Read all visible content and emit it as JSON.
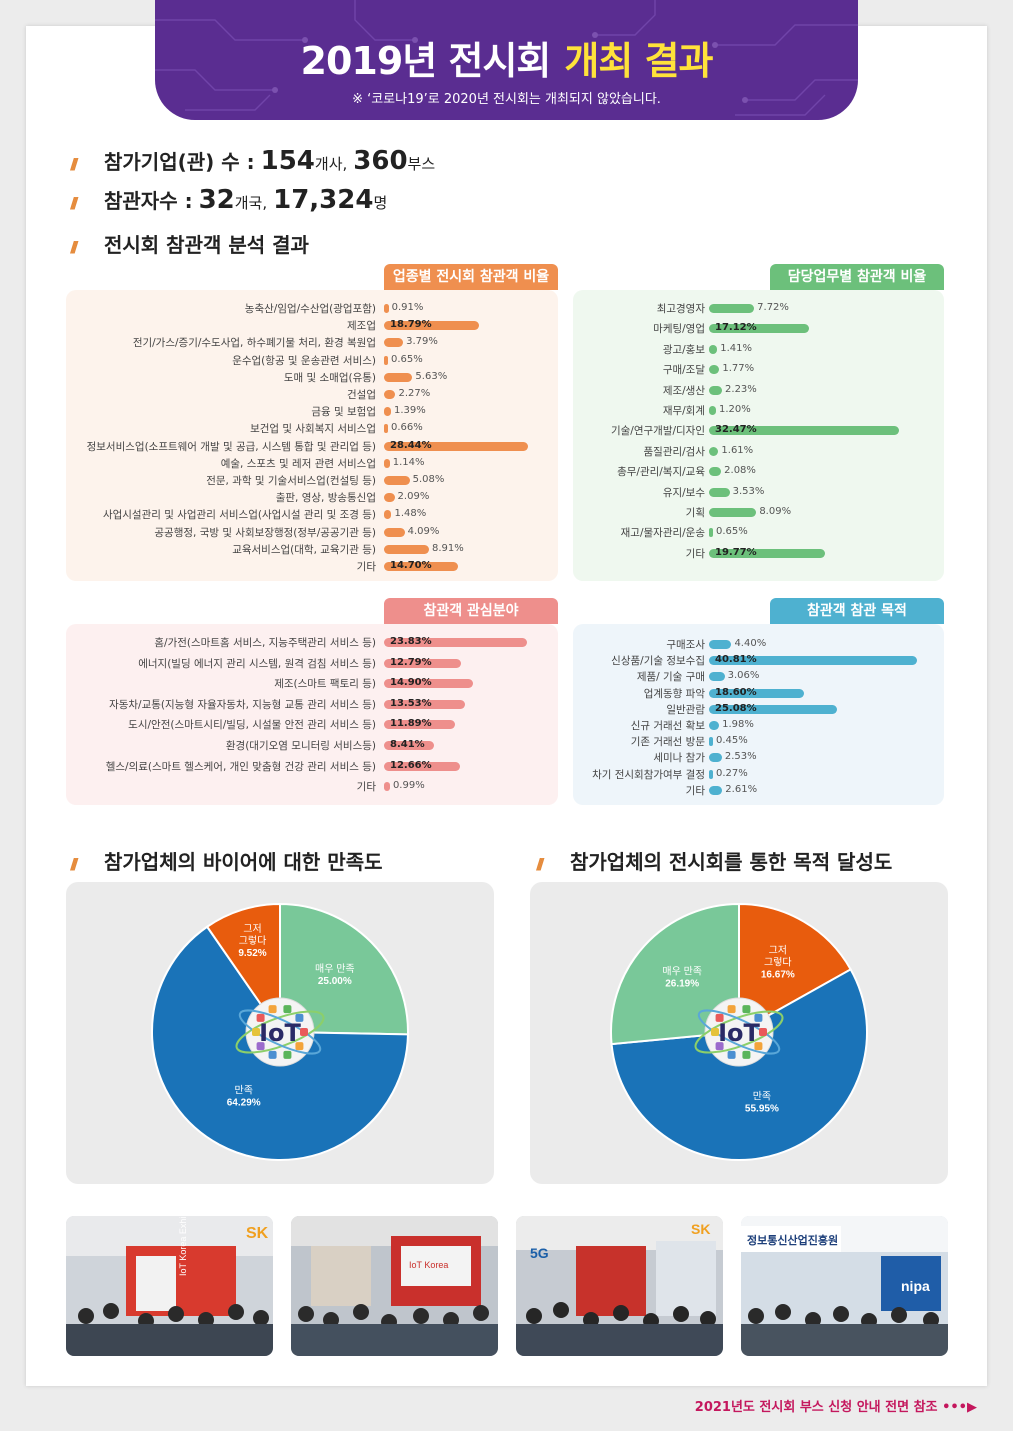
{
  "banner": {
    "title_main": "2019년 전시회",
    "title_accent": "개최 결과",
    "note": "※ ‘코로나19’로 2020년 전시회는 개최되지 않았습니다."
  },
  "headline1": {
    "label": "참가기업(관) 수 :",
    "companies": "154",
    "companies_unit": "개사,",
    "booths": "360",
    "booths_unit": "부스"
  },
  "headline2": {
    "label": "참관자수 :",
    "countries": "32",
    "countries_unit": "개국,",
    "visitors": "17,324",
    "visitors_unit": "명"
  },
  "headline3": {
    "label": "전시회 참관객 분석 결과"
  },
  "section_pies": {
    "left_title": "참가업체의 바이어에 대한 만족도",
    "right_title": "참가업체의 전시회를 통한 목적 달성도"
  },
  "footer": {
    "text": "2021년도 전시회 부스 신청 안내 전면 참조",
    "arrow": "•••▶"
  },
  "colors": {
    "banner": "#5a2d91",
    "accent": "#ffe23a",
    "orange": "#ef8f4f",
    "green": "#6cc07b",
    "pink": "#ee8f8c",
    "blue": "#4eb1d0",
    "pie_green": "#79c899",
    "pie_blue": "#1a73b8",
    "pie_orange": "#e85c0d"
  },
  "chart_data": [
    {
      "type": "bar",
      "title": "업종별 전시회 참관객 비율",
      "categories": [
        "농축산/임업/수산업(광업포함)",
        "제조업",
        "전기/가스/증기/수도사업, 하수폐기물 처리, 환경 복원업",
        "운수업(항공 및 운송관련 서비스)",
        "도매 및 소매업(유통)",
        "건설업",
        "금융 및 보험업",
        "보건업 및 사회복지 서비스업",
        "정보서비스업(소프트웨어 개발 및 공급, 시스템 통합 및 관리업 등)",
        "예술, 스포츠 및 레저 관련 서비스업",
        "전문, 과학 및 기술서비스업(컨설팅 등)",
        "출판, 영상, 방송통신업",
        "사업시설관리 및 사업관리 서비스업(사업시설 관리 및 조경 등)",
        "공공행정, 국방 및 사회보장행정(정부/공공기관 등)",
        "교육서비스업(대학, 교육기관 등)",
        "기타"
      ],
      "values": [
        0.91,
        18.79,
        3.79,
        0.65,
        5.63,
        2.27,
        1.39,
        0.66,
        28.44,
        1.14,
        5.08,
        2.09,
        1.48,
        4.09,
        8.91,
        14.7
      ],
      "labels": [
        "0.91%",
        "18.79%",
        "3.79%",
        "0.65%",
        "5.63%",
        "2.27%",
        "1.39%",
        "0.66%",
        "28.44%",
        "1.14%",
        "5.08%",
        "2.09%",
        "1.48%",
        "4.09%",
        "8.91%",
        "14.70%"
      ],
      "color": "#ef8f4f"
    },
    {
      "type": "bar",
      "title": "담당업무별 참관객 비율",
      "categories": [
        "최고경영자",
        "마케팅/영업",
        "광고/홍보",
        "구매/조달",
        "제조/생산",
        "재무/회계",
        "기술/연구개발/디자인",
        "품질관리/검사",
        "총무/관리/복지/교육",
        "유지/보수",
        "기획",
        "재고/물자관리/운송",
        "기타"
      ],
      "values": [
        7.72,
        17.12,
        1.41,
        1.77,
        2.23,
        1.2,
        32.47,
        1.61,
        2.08,
        3.53,
        8.09,
        0.65,
        19.77
      ],
      "labels": [
        "7.72%",
        "17.12%",
        "1.41%",
        "1.77%",
        "2.23%",
        "1.20%",
        "32.47%",
        "1.61%",
        "2.08%",
        "3.53%",
        "8.09%",
        "0.65%",
        "19.77%"
      ],
      "color": "#6cc07b"
    },
    {
      "type": "bar",
      "title": "참관객 관심분야",
      "categories": [
        "홈/가전(스마트홈 서비스, 지능주택관리 서비스 등)",
        "에너지(빌딩 에너지 관리 시스템, 원격 검침 서비스 등)",
        "제조(스마트 팩토리 등)",
        "자동차/교통(지능형 자율자동차, 지능형 교통 관리 서비스 등)",
        "도시/안전(스마트시티/빌딩, 시설물 안전 관리 서비스 등)",
        "환경(대기오염 모니터링 서비스등)",
        "헬스/의료(스마트 헬스케어, 개인 맞춤형 건강 관리 서비스 등)",
        "기타"
      ],
      "values": [
        23.83,
        12.79,
        14.9,
        13.53,
        11.89,
        8.41,
        12.66,
        0.99
      ],
      "labels": [
        "23.83%",
        "12.79%",
        "14.90%",
        "13.53%",
        "11.89%",
        "8.41%",
        "12.66%",
        "0.99%"
      ],
      "color": "#ee8f8c"
    },
    {
      "type": "bar",
      "title": "참관객 참관 목적",
      "categories": [
        "구매조사",
        "신상품/기술 정보수집",
        "제품/ 기술 구매",
        "업계동향 파악",
        "일반관람",
        "신규 거래선 확보",
        "기존 거래선 방문",
        "세미나 참가",
        "차기 전시회참가여부 결정",
        "기타"
      ],
      "values": [
        4.4,
        40.81,
        3.06,
        18.6,
        25.08,
        1.98,
        0.45,
        2.53,
        0.27,
        2.61
      ],
      "labels": [
        "4.40%",
        "40.81%",
        "3.06%",
        "18.60%",
        "25.08%",
        "1.98%",
        "0.45%",
        "2.53%",
        "0.27%",
        "2.61%"
      ],
      "color": "#4eb1d0"
    },
    {
      "type": "pie",
      "title": "참가업체의 바이어에 대한 만족도",
      "slices": [
        {
          "name": "매우 만족",
          "value": 25.0,
          "label": "25.00%",
          "color": "#79c899"
        },
        {
          "name": "만족",
          "value": 64.29,
          "label": "64.29%",
          "color": "#1a73b8"
        },
        {
          "name": "그저 그렇다",
          "value": 9.52,
          "label": "9.52%",
          "color": "#e85c0d"
        }
      ]
    },
    {
      "type": "pie",
      "title": "참가업체의 전시회를 통한 목적 달성도",
      "slices": [
        {
          "name": "그저 그렇다",
          "value": 16.67,
          "label": "16.67%",
          "color": "#e85c0d"
        },
        {
          "name": "만족",
          "value": 55.95,
          "label": "55.95%",
          "color": "#1a73b8"
        },
        {
          "name": "매우 만족",
          "value": 26.19,
          "label": "26.19%",
          "color": "#79c899"
        }
      ]
    }
  ],
  "pie_center": {
    "text": "IoT"
  },
  "photos": [
    {
      "sign": "IoT Korea Exhibition",
      "sign2": "SK"
    },
    {
      "sign": "IoT Korea",
      "sign2": ""
    },
    {
      "sign": "5G",
      "sign2": "SK"
    },
    {
      "sign": "정보통신산업진흥원",
      "sign2": "nipa"
    }
  ]
}
